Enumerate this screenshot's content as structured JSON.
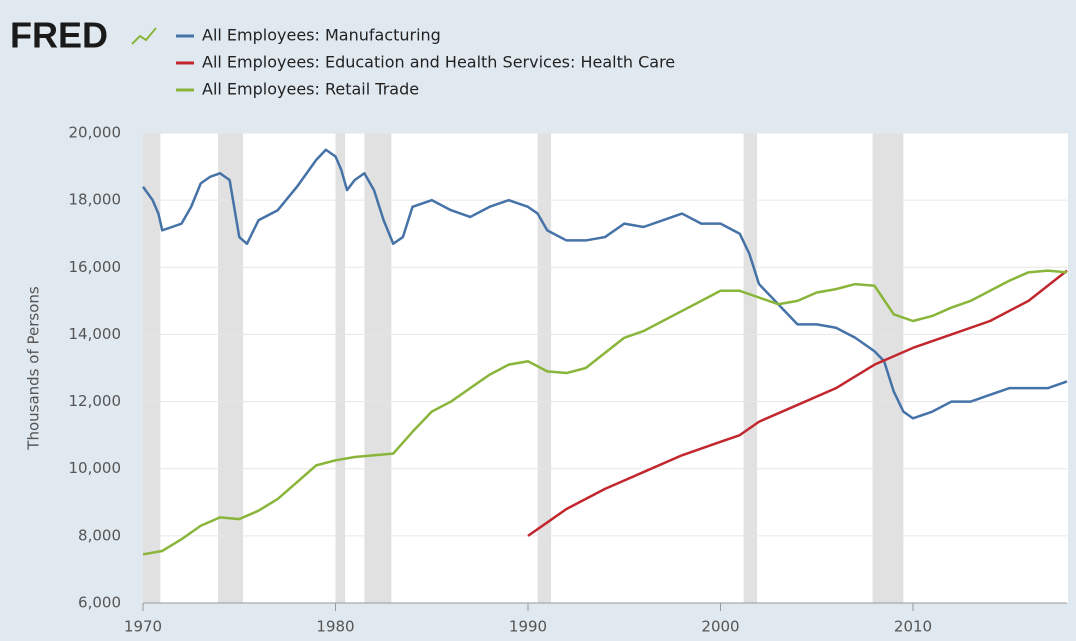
{
  "chart_data": {
    "type": "line",
    "logo": "FRED",
    "y_label": "Thousands of Persons",
    "xlim": [
      1970,
      2018
    ],
    "xticks": [
      1970,
      1980,
      1990,
      2000,
      2010
    ],
    "ylim": [
      6000,
      20000
    ],
    "yticks": [
      {
        "value": 6000,
        "label": "6,000"
      },
      {
        "value": 8000,
        "label": "8,000"
      },
      {
        "value": 10000,
        "label": "10,000"
      },
      {
        "value": 12000,
        "label": "12,000"
      },
      {
        "value": 14000,
        "label": "14,000"
      },
      {
        "value": 16000,
        "label": "16,000"
      },
      {
        "value": 18000,
        "label": "18,000"
      },
      {
        "value": 20000,
        "label": "20,000"
      }
    ],
    "grid": true,
    "recessions": [
      [
        1969.9,
        1970.9
      ],
      [
        1973.9,
        1975.2
      ],
      [
        1980.0,
        1980.5
      ],
      [
        1981.5,
        1982.9
      ],
      [
        1990.5,
        1991.2
      ],
      [
        2001.2,
        2001.9
      ],
      [
        2007.9,
        2009.5
      ]
    ],
    "series": [
      {
        "name": "All Employees: Manufacturing",
        "color": "#4572a7",
        "x": [
          1970,
          1970.5,
          1970.8,
          1971,
          1971.5,
          1972,
          1972.5,
          1973,
          1973.5,
          1974,
          1974.5,
          1975,
          1975.4,
          1976,
          1977,
          1978,
          1979,
          1979.5,
          1980,
          1980.3,
          1980.6,
          1981,
          1981.5,
          1982,
          1982.5,
          1983,
          1983.5,
          1984,
          1985,
          1986,
          1987,
          1988,
          1989,
          1990,
          1990.5,
          1991,
          1992,
          1993,
          1994,
          1995,
          1996,
          1997,
          1998,
          1999,
          2000,
          2001,
          2001.5,
          2002,
          2003,
          2004,
          2005,
          2006,
          2007,
          2008,
          2008.5,
          2009,
          2009.5,
          2010,
          2011,
          2012,
          2013,
          2014,
          2015,
          2016,
          2017,
          2018
        ],
        "values": [
          18400,
          18000,
          17600,
          17100,
          17200,
          17300,
          17800,
          18500,
          18700,
          18800,
          18600,
          16900,
          16700,
          17400,
          17700,
          18400,
          19200,
          19500,
          19300,
          18900,
          18300,
          18600,
          18800,
          18300,
          17400,
          16700,
          16900,
          17800,
          18000,
          17700,
          17500,
          17800,
          18000,
          17800,
          17600,
          17100,
          16800,
          16800,
          16900,
          17300,
          17200,
          17400,
          17600,
          17300,
          17300,
          17000,
          16400,
          15500,
          14900,
          14300,
          14300,
          14200,
          13900,
          13500,
          13200,
          12300,
          11700,
          11500,
          11700,
          12000,
          12000,
          12200,
          12400,
          12400,
          12400,
          12600
        ]
      },
      {
        "name": "All Employees: Education and Health Services: Health Care",
        "color": "#c1272d",
        "x": [
          1990,
          1991,
          1992,
          1994,
          1996,
          1998,
          2000,
          2001,
          2002,
          2004,
          2006,
          2008,
          2010,
          2012,
          2014,
          2016,
          2018
        ],
        "values": [
          8000,
          8400,
          8800,
          9400,
          9900,
          10400,
          10800,
          11000,
          11400,
          11900,
          12400,
          13100,
          13600,
          14000,
          14400,
          15000,
          15900
        ]
      },
      {
        "name": "All Employees: Retail Trade",
        "color": "#89b53b",
        "x": [
          1970,
          1971,
          1972,
          1973,
          1974,
          1975,
          1976,
          1977,
          1978,
          1979,
          1980,
          1981,
          1982,
          1983,
          1984,
          1985,
          1986,
          1987,
          1988,
          1989,
          1990,
          1991,
          1992,
          1993,
          1994,
          1995,
          1996,
          1997,
          1998,
          1999,
          2000,
          2001,
          2002,
          2003,
          2004,
          2005,
          2006,
          2007,
          2008,
          2009,
          2010,
          2011,
          2012,
          2013,
          2014,
          2015,
          2016,
          2017,
          2018
        ],
        "values": [
          7450,
          7550,
          7900,
          8300,
          8550,
          8500,
          8750,
          9100,
          9600,
          10100,
          10250,
          10350,
          10400,
          10450,
          11100,
          11700,
          12000,
          12400,
          12800,
          13100,
          13200,
          12900,
          12850,
          13000,
          13450,
          13900,
          14100,
          14400,
          14700,
          15000,
          15300,
          15300,
          15100,
          14900,
          15000,
          15250,
          15350,
          15500,
          15450,
          14600,
          14400,
          14550,
          14800,
          15000,
          15300,
          15600,
          15850,
          15900,
          15850
        ]
      }
    ]
  }
}
